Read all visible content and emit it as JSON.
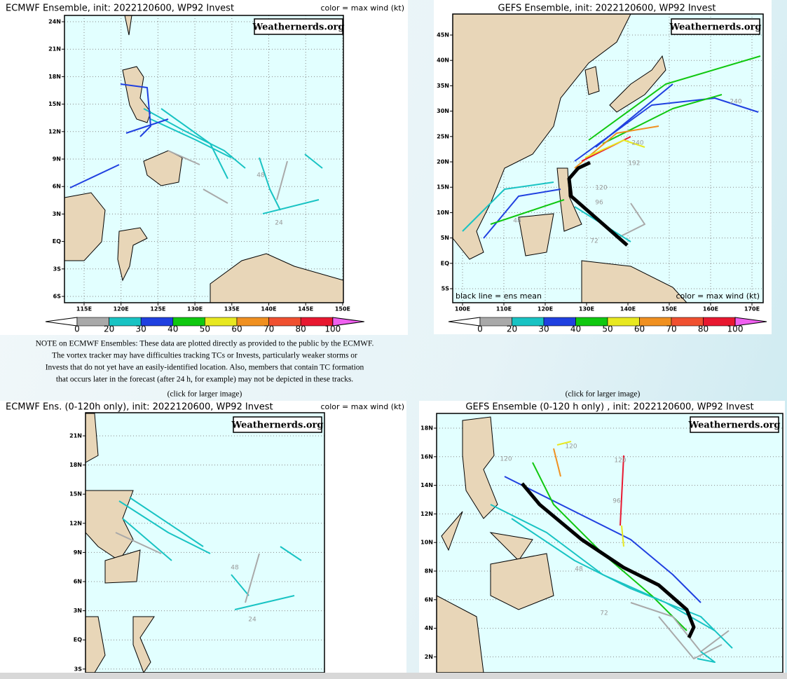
{
  "panels": [
    {
      "title": "ECMWF Ensemble, init: 2022120600, WP92 Invest",
      "legend_note": "color = max wind (kt)",
      "brand": "Weathernerds.org",
      "lat_labels": [
        "24N",
        "21N",
        "18N",
        "15N",
        "12N",
        "9N",
        "6N",
        "3N",
        "EQ",
        "3S",
        "6S"
      ],
      "lon_labels": [
        "115E",
        "120E",
        "125E",
        "130E",
        "135E",
        "140E",
        "145E",
        "150E"
      ],
      "colorbar": {
        "values": [
          0,
          20,
          30,
          40,
          50,
          60,
          70,
          80,
          100
        ],
        "colors": [
          "#a9a9a9",
          "#19c3c3",
          "#2040e0",
          "#10c810",
          "#e8e820",
          "#f09020",
          "#f05030",
          "#e81830"
        ],
        "over_color": "#f060f0"
      },
      "track_labels": [
        "48",
        "24"
      ]
    },
    {
      "title": "GEFS Ensemble, init: 2022120600, WP92 Invest",
      "legend_note": "color = max wind (kt)",
      "mean_note": "black line = ens mean",
      "brand": "Weathernerds.org",
      "lat_labels": [
        "45N",
        "40N",
        "35N",
        "30N",
        "25N",
        "20N",
        "15N",
        "10N",
        "5N",
        "EQ",
        "5S"
      ],
      "lon_labels": [
        "100E",
        "110E",
        "120E",
        "130E",
        "140E",
        "150E",
        "160E",
        "170E"
      ],
      "colorbar": {
        "values": [
          0,
          20,
          30,
          40,
          50,
          60,
          70,
          80,
          100
        ],
        "colors": [
          "#a9a9a9",
          "#19c3c3",
          "#2040e0",
          "#10c810",
          "#e8e820",
          "#f09020",
          "#f05030",
          "#e81830"
        ],
        "over_color": "#f060f0"
      },
      "track_labels": [
        "240",
        "240",
        "192",
        "120",
        "96",
        "72",
        "48"
      ]
    },
    {
      "title": "ECMWF Ens. (0-120h only), init: 2022120600, WP92 Invest",
      "legend_note": "color = max wind (kt)",
      "brand": "Weathernerds.org",
      "lat_labels": [
        "21N",
        "18N",
        "15N",
        "12N",
        "9N",
        "6N",
        "3N",
        "EQ",
        "3S"
      ],
      "track_labels": [
        "48",
        "24"
      ]
    },
    {
      "title": "GEFS Ensemble (0-120 h only) , init: 2022120600, WP92 Invest",
      "brand": "Weathernerds.org",
      "lat_labels": [
        "18N",
        "16N",
        "14N",
        "12N",
        "10N",
        "8N",
        "6N",
        "4N",
        "2N"
      ],
      "track_labels": [
        "120",
        "120",
        "96",
        "48",
        "72",
        "120"
      ]
    }
  ],
  "note": [
    "NOTE on ECMWF Ensembles: These data are plotted directly as provided to the public by the ECMWF.",
    "The vortex tracker may have difficulties tracking TCs or Invests, particularly weaker storms or",
    "Invests that do not yet have an easily-identified location. Also, members that contain TC formation",
    "that occurs later in the forecast (after 24 h, for example) may not be depicted in these tracks."
  ],
  "click_links": [
    "(click for larger image)",
    "(click for larger image)"
  ]
}
